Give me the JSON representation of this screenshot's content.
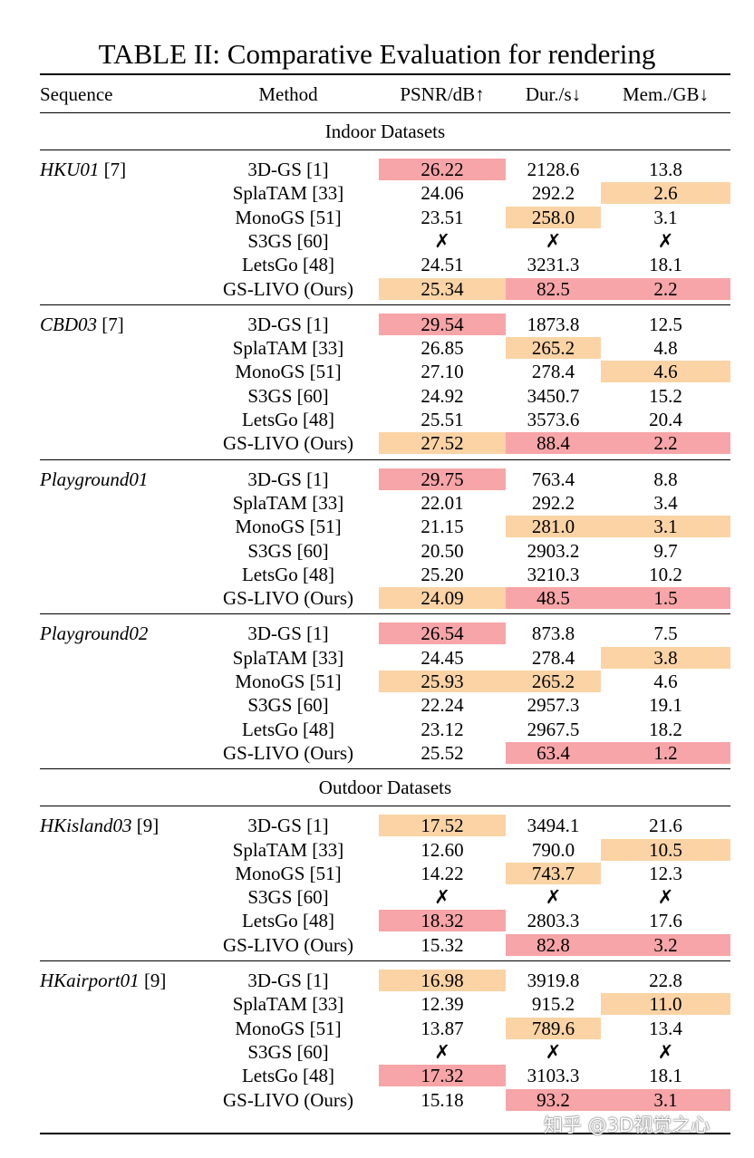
{
  "title": "TABLE II: Comparative Evaluation for rendering",
  "header": {
    "sequence": "Sequence",
    "method": "Method",
    "psnr": "PSNR/dB↑",
    "dur": "Dur./s↓",
    "mem": "Mem./GB↓"
  },
  "groups": [
    {
      "type": "section",
      "label": "Indoor Datasets"
    },
    {
      "type": "block",
      "seq_name": "HKU01",
      "seq_ref": " [7]",
      "rows": [
        {
          "method": "3D-GS [1]",
          "psnr": "26.22",
          "dur": "2128.6",
          "mem": "13.8",
          "hl": {
            "psnr": "red"
          }
        },
        {
          "method": "SplaTAM [33]",
          "psnr": "24.06",
          "dur": "292.2",
          "mem": "2.6",
          "hl": {
            "mem": "orange"
          }
        },
        {
          "method": "MonoGS [51]",
          "psnr": "23.51",
          "dur": "258.0",
          "mem": "3.1",
          "hl": {
            "dur": "orange"
          }
        },
        {
          "method": "S3GS [60]",
          "psnr": "✗",
          "dur": "✗",
          "mem": "✗",
          "hl": {}
        },
        {
          "method": "LetsGo [48]",
          "psnr": "24.51",
          "dur": "3231.3",
          "mem": "18.1",
          "hl": {}
        },
        {
          "method": "GS-LIVO (Ours)",
          "psnr": "25.34",
          "dur": "82.5",
          "mem": "2.2",
          "hl": {
            "psnr": "orange",
            "dur": "red",
            "mem": "red"
          }
        }
      ]
    },
    {
      "type": "block",
      "seq_name": "CBD03",
      "seq_ref": " [7]",
      "rows": [
        {
          "method": "3D-GS [1]",
          "psnr": "29.54",
          "dur": "1873.8",
          "mem": "12.5",
          "hl": {
            "psnr": "red"
          }
        },
        {
          "method": "SplaTAM [33]",
          "psnr": "26.85",
          "dur": "265.2",
          "mem": "4.8",
          "hl": {
            "dur": "orange"
          }
        },
        {
          "method": "MonoGS [51]",
          "psnr": "27.10",
          "dur": "278.4",
          "mem": "4.6",
          "hl": {
            "mem": "orange"
          }
        },
        {
          "method": "S3GS [60]",
          "psnr": "24.92",
          "dur": "3450.7",
          "mem": "15.2",
          "hl": {}
        },
        {
          "method": "LetsGo [48]",
          "psnr": "25.51",
          "dur": "3573.6",
          "mem": "20.4",
          "hl": {}
        },
        {
          "method": "GS-LIVO (Ours)",
          "psnr": "27.52",
          "dur": "88.4",
          "mem": "2.2",
          "hl": {
            "psnr": "orange",
            "dur": "red",
            "mem": "red"
          }
        }
      ]
    },
    {
      "type": "block",
      "seq_name": "Playground01",
      "seq_ref": "",
      "rows": [
        {
          "method": "3D-GS [1]",
          "psnr": "29.75",
          "dur": "763.4",
          "mem": "8.8",
          "hl": {
            "psnr": "red"
          }
        },
        {
          "method": "SplaTAM [33]",
          "psnr": "22.01",
          "dur": "292.2",
          "mem": "3.4",
          "hl": {}
        },
        {
          "method": "MonoGS [51]",
          "psnr": "21.15",
          "dur": "281.0",
          "mem": "3.1",
          "hl": {
            "dur": "orange",
            "mem": "orange"
          }
        },
        {
          "method": "S3GS [60]",
          "psnr": "20.50",
          "dur": "2903.2",
          "mem": "9.7",
          "hl": {}
        },
        {
          "method": "LetsGo [48]",
          "psnr": "25.20",
          "dur": "3210.3",
          "mem": "10.2",
          "hl": {}
        },
        {
          "method": "GS-LIVO (Ours)",
          "psnr": "24.09",
          "dur": "48.5",
          "mem": "1.5",
          "hl": {
            "psnr": "orange",
            "dur": "red",
            "mem": "red"
          }
        }
      ]
    },
    {
      "type": "block",
      "seq_name": "Playground02",
      "seq_ref": "",
      "rows": [
        {
          "method": "3D-GS [1]",
          "psnr": "26.54",
          "dur": "873.8",
          "mem": "7.5",
          "hl": {
            "psnr": "red"
          }
        },
        {
          "method": "SplaTAM [33]",
          "psnr": "24.45",
          "dur": "278.4",
          "mem": "3.8",
          "hl": {
            "mem": "orange"
          }
        },
        {
          "method": "MonoGS [51]",
          "psnr": "25.93",
          "dur": "265.2",
          "mem": "4.6",
          "hl": {
            "psnr": "orange",
            "dur": "orange"
          }
        },
        {
          "method": "S3GS [60]",
          "psnr": "22.24",
          "dur": "2957.3",
          "mem": "19.1",
          "hl": {}
        },
        {
          "method": "LetsGo [48]",
          "psnr": "23.12",
          "dur": "2967.5",
          "mem": "18.2",
          "hl": {}
        },
        {
          "method": "GS-LIVO (Ours)",
          "psnr": "25.52",
          "dur": "63.4",
          "mem": "1.2",
          "hl": {
            "dur": "red",
            "mem": "red"
          }
        }
      ]
    },
    {
      "type": "section",
      "label": "Outdoor Datasets"
    },
    {
      "type": "block",
      "seq_name": "HKisland03",
      "seq_ref": " [9]",
      "rows": [
        {
          "method": "3D-GS [1]",
          "psnr": "17.52",
          "dur": "3494.1",
          "mem": "21.6",
          "hl": {
            "psnr": "orange"
          }
        },
        {
          "method": "SplaTAM [33]",
          "psnr": "12.60",
          "dur": "790.0",
          "mem": "10.5",
          "hl": {
            "mem": "orange"
          }
        },
        {
          "method": "MonoGS [51]",
          "psnr": "14.22",
          "dur": "743.7",
          "mem": "12.3",
          "hl": {
            "dur": "orange"
          }
        },
        {
          "method": "S3GS [60]",
          "psnr": "✗",
          "dur": "✗",
          "mem": "✗",
          "hl": {}
        },
        {
          "method": "LetsGo [48]",
          "psnr": "18.32",
          "dur": "2803.3",
          "mem": "17.6",
          "hl": {
            "psnr": "red"
          }
        },
        {
          "method": "GS-LIVO (Ours)",
          "psnr": "15.32",
          "dur": "82.8",
          "mem": "3.2",
          "hl": {
            "dur": "red",
            "mem": "red"
          }
        }
      ]
    },
    {
      "type": "block",
      "seq_name": "HKairport01",
      "seq_ref": " [9]",
      "rows": [
        {
          "method": "3D-GS [1]",
          "psnr": "16.98",
          "dur": "3919.8",
          "mem": "22.8",
          "hl": {
            "psnr": "orange"
          }
        },
        {
          "method": "SplaTAM [33]",
          "psnr": "12.39",
          "dur": "915.2",
          "mem": "11.0",
          "hl": {
            "mem": "orange"
          }
        },
        {
          "method": "MonoGS [51]",
          "psnr": "13.87",
          "dur": "789.6",
          "mem": "13.4",
          "hl": {
            "dur": "orange"
          }
        },
        {
          "method": "S3GS [60]",
          "psnr": "✗",
          "dur": "✗",
          "mem": "✗",
          "hl": {}
        },
        {
          "method": "LetsGo [48]",
          "psnr": "17.32",
          "dur": "3103.3",
          "mem": "18.1",
          "hl": {
            "psnr": "red"
          }
        },
        {
          "method": "GS-LIVO (Ours)",
          "psnr": "15.18",
          "dur": "93.2",
          "mem": "3.1",
          "hl": {
            "dur": "red",
            "mem": "red"
          }
        }
      ]
    }
  ],
  "watermark": "知乎 @3D视觉之心",
  "colors": {
    "best": "#f7a5a8",
    "second": "#fbd3a5"
  }
}
